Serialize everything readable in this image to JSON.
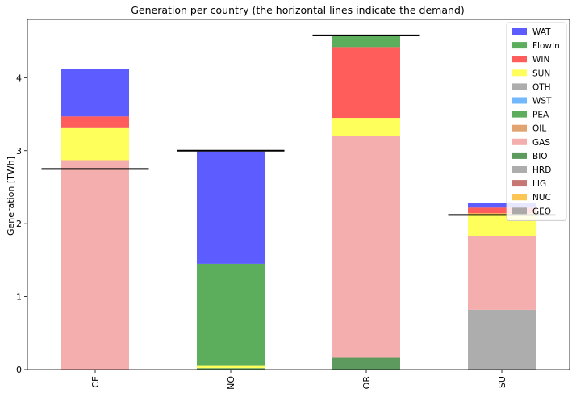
{
  "chart_data": {
    "type": "bar",
    "stacked": true,
    "title": "Generation per country (the horizontal lines indicate the demand)",
    "xlabel": "",
    "ylabel": "Generation [TWh]",
    "ylim": [
      0,
      4.8
    ],
    "yticks": [
      0,
      1,
      2,
      3,
      4
    ],
    "categories": [
      "CE",
      "NO",
      "OR",
      "SU"
    ],
    "legend_position": "top-right",
    "grid": false,
    "series": [
      {
        "name": "GEO",
        "color": "#999999",
        "values": [
          0,
          0,
          0,
          0
        ]
      },
      {
        "name": "NUC",
        "color": "#fbb829",
        "values": [
          0,
          0,
          0,
          0
        ]
      },
      {
        "name": "LIG",
        "color": "#b85450",
        "values": [
          0,
          0,
          0,
          0
        ]
      },
      {
        "name": "HRD",
        "color": "#999999",
        "values": [
          0,
          0,
          0,
          0.82
        ]
      },
      {
        "name": "BIO",
        "color": "#358135",
        "values": [
          0,
          0.02,
          0.16,
          0
        ]
      },
      {
        "name": "GAS",
        "color": "#f29a9a",
        "values": [
          2.87,
          0,
          3.04,
          1.01
        ]
      },
      {
        "name": "OIL",
        "color": "#d98c4c",
        "values": [
          0,
          0,
          0,
          0
        ]
      },
      {
        "name": "PEA",
        "color": "#359935",
        "values": [
          0,
          0,
          0,
          0
        ]
      },
      {
        "name": "WST",
        "color": "#4da6ff",
        "values": [
          0,
          0,
          0,
          0
        ]
      },
      {
        "name": "OTH",
        "color": "#999999",
        "values": [
          0,
          0,
          0,
          0
        ]
      },
      {
        "name": "SUN",
        "color": "#ffff33",
        "values": [
          0.45,
          0.04,
          0.25,
          0.31
        ]
      },
      {
        "name": "WIN",
        "color": "#ff3333",
        "values": [
          0.15,
          0,
          0.97,
          0.08
        ]
      },
      {
        "name": "FlowIn",
        "color": "#339933",
        "values": [
          0,
          1.39,
          0.16,
          0
        ]
      },
      {
        "name": "WAT",
        "color": "#3333ff",
        "values": [
          0.65,
          1.54,
          0,
          0.06
        ]
      }
    ],
    "legend_order": [
      "WAT",
      "FlowIn",
      "WIN",
      "SUN",
      "OTH",
      "WST",
      "PEA",
      "OIL",
      "GAS",
      "BIO",
      "HRD",
      "LIG",
      "NUC",
      "GEO"
    ],
    "demand": [
      2.75,
      3.0,
      4.58,
      2.12
    ]
  }
}
